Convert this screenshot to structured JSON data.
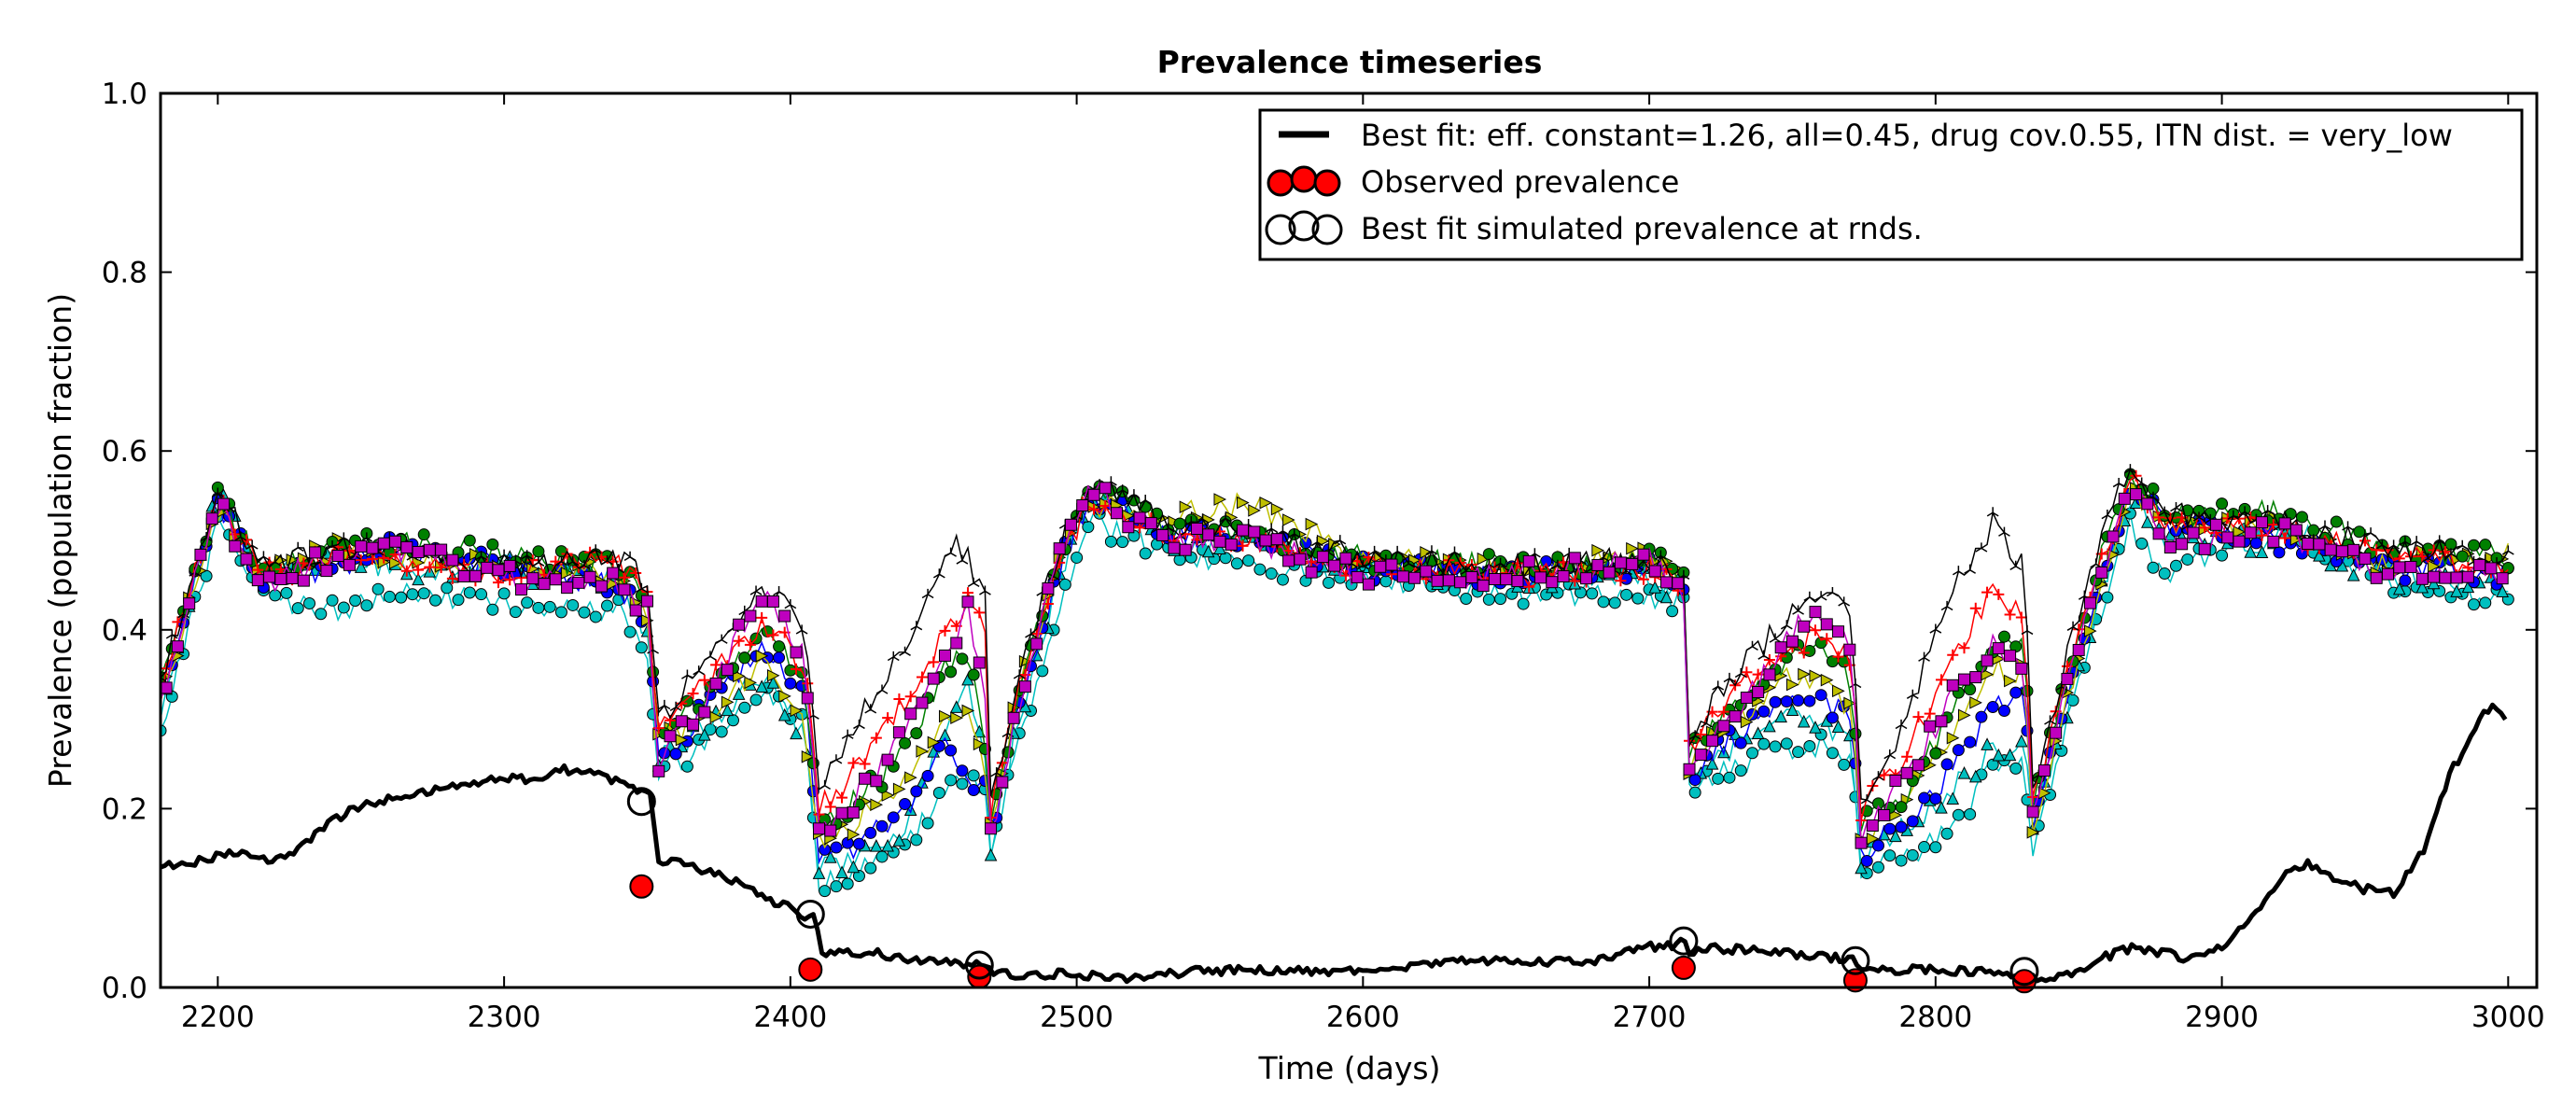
{
  "chart_data": {
    "type": "line",
    "title": "Prevalence timeseries",
    "xlabel": "Time (days)",
    "ylabel": "Prevalence (population fraction)",
    "xlim": [
      2180,
      3010
    ],
    "ylim": [
      0.0,
      1.0
    ],
    "x_ticks": [
      "2200",
      "2300",
      "2400",
      "2500",
      "2600",
      "2700",
      "2800",
      "2900",
      "3000"
    ],
    "y_ticks": [
      "0.0",
      "0.2",
      "0.4",
      "0.6",
      "0.8",
      "1.0"
    ],
    "grid": false,
    "legend_position": "top-right",
    "legend": [
      "Best fit: eff. constant=1.26, all=0.45, drug cov.0.55, ITN dist. = very_low",
      "Observed prevalence",
      "Best fit simulated prevalence at rnds."
    ],
    "best_fit": {
      "name": "Best fit: eff. constant=1.26, all=0.45, drug cov.0.55, ITN dist. = very_low",
      "color": "#000000",
      "x": [
        2180,
        2190,
        2200,
        2210,
        2220,
        2230,
        2240,
        2250,
        2260,
        2270,
        2280,
        2290,
        2300,
        2310,
        2320,
        2330,
        2340,
        2348,
        2352,
        2353,
        2360,
        2370,
        2380,
        2390,
        2400,
        2405,
        2409,
        2410,
        2420,
        2430,
        2440,
        2450,
        2460,
        2468,
        2470,
        2480,
        2500,
        2520,
        2540,
        2560,
        2580,
        2600,
        2620,
        2640,
        2660,
        2680,
        2700,
        2713,
        2714,
        2720,
        2740,
        2760,
        2772,
        2774,
        2790,
        2810,
        2830,
        2840,
        2850,
        2860,
        2870,
        2880,
        2890,
        2900,
        2910,
        2920,
        2930,
        2940,
        2950,
        2960,
        2970,
        2980,
        2990,
        2995,
        3000
      ],
      "y": [
        0.135,
        0.138,
        0.148,
        0.152,
        0.14,
        0.16,
        0.185,
        0.205,
        0.21,
        0.218,
        0.225,
        0.228,
        0.235,
        0.232,
        0.245,
        0.238,
        0.232,
        0.22,
        0.215,
        0.14,
        0.14,
        0.13,
        0.12,
        0.1,
        0.09,
        0.08,
        0.08,
        0.04,
        0.04,
        0.038,
        0.032,
        0.03,
        0.026,
        0.026,
        0.015,
        0.015,
        0.015,
        0.01,
        0.018,
        0.02,
        0.018,
        0.02,
        0.025,
        0.03,
        0.028,
        0.03,
        0.045,
        0.05,
        0.04,
        0.045,
        0.04,
        0.035,
        0.03,
        0.02,
        0.02,
        0.018,
        0.015,
        0.01,
        0.02,
        0.035,
        0.045,
        0.038,
        0.032,
        0.045,
        0.075,
        0.12,
        0.14,
        0.12,
        0.11,
        0.105,
        0.15,
        0.24,
        0.3,
        0.32,
        0.29
      ]
    },
    "observed": {
      "name": "Observed prevalence",
      "color": "#ff0000",
      "x": [
        2348,
        2407,
        2466,
        2712,
        2772,
        2831
      ],
      "y": [
        0.113,
        0.02,
        0.012,
        0.022,
        0.008,
        0.007
      ]
    },
    "simulated_at_rounds": {
      "name": "Best fit simulated prevalence at rnds.",
      "x": [
        2348,
        2407,
        2466,
        2712,
        2772,
        2831
      ],
      "y": [
        0.208,
        0.082,
        0.025,
        0.052,
        0.03,
        0.018
      ]
    },
    "replicate_key_x": [
      2180,
      2200,
      2215,
      2240,
      2260,
      2300,
      2340,
      2351,
      2353,
      2370,
      2390,
      2405,
      2410,
      2420,
      2440,
      2455,
      2462,
      2468,
      2470,
      2480,
      2495,
      2505,
      2530,
      2560,
      2600,
      2650,
      2700,
      2712,
      2714,
      2730,
      2750,
      2760,
      2771,
      2774,
      2790,
      2805,
      2820,
      2831,
      2834,
      2850,
      2868,
      2880,
      2920,
      2960,
      3000
    ],
    "replicates": [
      {
        "marker": "circle",
        "color": "#00bfbf",
        "y": [
          0.29,
          0.52,
          0.44,
          0.42,
          0.44,
          0.43,
          0.42,
          0.37,
          0.24,
          0.27,
          0.33,
          0.29,
          0.12,
          0.12,
          0.16,
          0.22,
          0.24,
          0.22,
          0.14,
          0.28,
          0.44,
          0.52,
          0.49,
          0.47,
          0.46,
          0.44,
          0.44,
          0.43,
          0.22,
          0.25,
          0.27,
          0.27,
          0.26,
          0.13,
          0.15,
          0.17,
          0.25,
          0.25,
          0.15,
          0.34,
          0.52,
          0.46,
          0.52,
          0.45,
          0.43
        ]
      },
      {
        "marker": "triangle-up",
        "color": "#00bfbf",
        "y": [
          0.31,
          0.55,
          0.46,
          0.48,
          0.47,
          0.47,
          0.45,
          0.39,
          0.26,
          0.29,
          0.35,
          0.28,
          0.13,
          0.14,
          0.18,
          0.3,
          0.35,
          0.25,
          0.16,
          0.3,
          0.47,
          0.55,
          0.5,
          0.5,
          0.47,
          0.46,
          0.46,
          0.44,
          0.23,
          0.27,
          0.31,
          0.3,
          0.27,
          0.14,
          0.18,
          0.22,
          0.27,
          0.27,
          0.17,
          0.36,
          0.55,
          0.5,
          0.5,
          0.46,
          0.45
        ]
      },
      {
        "marker": "circle",
        "color": "#0000ff",
        "y": [
          0.33,
          0.54,
          0.46,
          0.47,
          0.49,
          0.47,
          0.45,
          0.41,
          0.25,
          0.31,
          0.38,
          0.33,
          0.14,
          0.15,
          0.2,
          0.27,
          0.23,
          0.23,
          0.17,
          0.31,
          0.48,
          0.55,
          0.51,
          0.5,
          0.47,
          0.46,
          0.47,
          0.44,
          0.24,
          0.28,
          0.33,
          0.33,
          0.29,
          0.15,
          0.19,
          0.24,
          0.31,
          0.33,
          0.18,
          0.38,
          0.56,
          0.52,
          0.5,
          0.47,
          0.46
        ]
      },
      {
        "marker": "triangle-right",
        "color": "#bfbf00",
        "y": [
          0.32,
          0.53,
          0.47,
          0.49,
          0.48,
          0.47,
          0.46,
          0.41,
          0.27,
          0.3,
          0.36,
          0.3,
          0.16,
          0.18,
          0.23,
          0.3,
          0.3,
          0.25,
          0.18,
          0.33,
          0.49,
          0.54,
          0.53,
          0.54,
          0.48,
          0.47,
          0.48,
          0.45,
          0.25,
          0.3,
          0.35,
          0.34,
          0.31,
          0.17,
          0.21,
          0.28,
          0.36,
          0.35,
          0.17,
          0.37,
          0.56,
          0.51,
          0.52,
          0.47,
          0.49
        ]
      },
      {
        "marker": "circle",
        "color": "#008000",
        "y": [
          0.34,
          0.55,
          0.47,
          0.49,
          0.5,
          0.48,
          0.47,
          0.43,
          0.28,
          0.33,
          0.4,
          0.34,
          0.18,
          0.2,
          0.26,
          0.36,
          0.37,
          0.28,
          0.18,
          0.33,
          0.49,
          0.56,
          0.52,
          0.51,
          0.48,
          0.47,
          0.48,
          0.46,
          0.27,
          0.32,
          0.37,
          0.38,
          0.34,
          0.18,
          0.22,
          0.3,
          0.38,
          0.4,
          0.2,
          0.4,
          0.58,
          0.53,
          0.53,
          0.49,
          0.48
        ]
      },
      {
        "marker": "plus",
        "color": "#ff0000",
        "y": [
          0.33,
          0.55,
          0.46,
          0.48,
          0.48,
          0.46,
          0.48,
          0.43,
          0.28,
          0.34,
          0.41,
          0.36,
          0.2,
          0.23,
          0.32,
          0.4,
          0.43,
          0.4,
          0.2,
          0.34,
          0.48,
          0.55,
          0.51,
          0.5,
          0.47,
          0.46,
          0.47,
          0.45,
          0.27,
          0.33,
          0.38,
          0.4,
          0.37,
          0.2,
          0.26,
          0.37,
          0.44,
          0.42,
          0.21,
          0.4,
          0.57,
          0.52,
          0.51,
          0.48,
          0.47
        ]
      },
      {
        "marker": "tri",
        "color": "#000000",
        "y": [
          0.34,
          0.56,
          0.47,
          0.49,
          0.49,
          0.47,
          0.48,
          0.45,
          0.29,
          0.36,
          0.45,
          0.41,
          0.22,
          0.28,
          0.38,
          0.5,
          0.48,
          0.43,
          0.21,
          0.35,
          0.5,
          0.57,
          0.52,
          0.51,
          0.48,
          0.47,
          0.48,
          0.46,
          0.28,
          0.35,
          0.42,
          0.44,
          0.42,
          0.21,
          0.3,
          0.44,
          0.52,
          0.47,
          0.22,
          0.42,
          0.59,
          0.53,
          0.52,
          0.49,
          0.48
        ]
      },
      {
        "marker": "square",
        "color": "#bf00bf",
        "y": [
          0.32,
          0.54,
          0.45,
          0.48,
          0.49,
          0.46,
          0.45,
          0.42,
          0.25,
          0.32,
          0.44,
          0.37,
          0.17,
          0.2,
          0.28,
          0.38,
          0.42,
          0.32,
          0.17,
          0.32,
          0.49,
          0.56,
          0.5,
          0.5,
          0.46,
          0.46,
          0.48,
          0.43,
          0.25,
          0.3,
          0.4,
          0.42,
          0.38,
          0.17,
          0.24,
          0.32,
          0.38,
          0.35,
          0.19,
          0.39,
          0.56,
          0.5,
          0.51,
          0.46,
          0.46
        ]
      }
    ]
  }
}
